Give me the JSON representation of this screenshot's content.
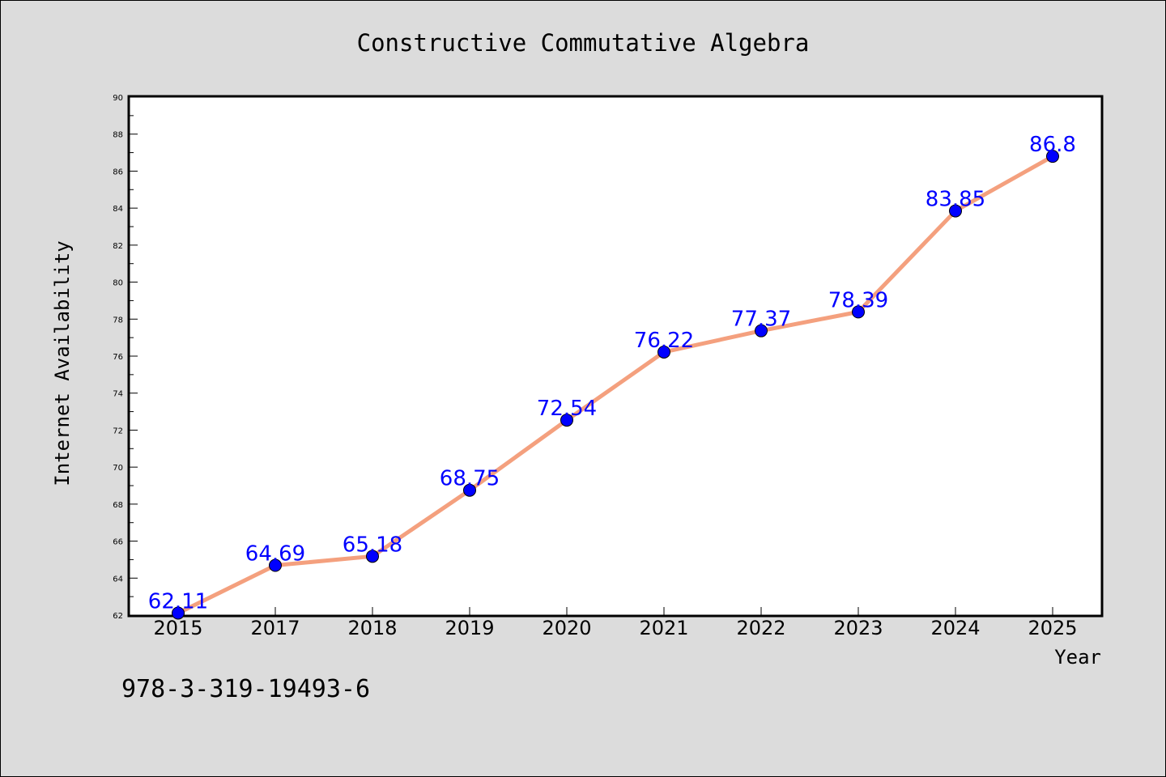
{
  "footer": {
    "isbn": "978-3-319-19493-6"
  },
  "colors": {
    "line": "#f4a07e",
    "marker": "#0000ff",
    "label": "#0000ff",
    "background": "#dcdcdc",
    "plot_bg": "#ffffff"
  },
  "chart_data": {
    "type": "line",
    "title": "Constructive Commutative Algebra",
    "xlabel": "Year",
    "ylabel": "Internet Availability",
    "categories": [
      "2015",
      "2017",
      "2018",
      "2019",
      "2020",
      "2021",
      "2022",
      "2023",
      "2024",
      "2025"
    ],
    "series": [
      {
        "values": [
          62.11,
          64.69,
          65.18,
          68.75,
          72.54,
          76.22,
          77.37,
          78.39,
          83.85,
          86.8
        ]
      }
    ],
    "data_labels": [
      "62.11",
      "64.69",
      "65.18",
      "68.75",
      "72.54",
      "76.22",
      "77.37",
      "78.39",
      "83.85",
      "86.8"
    ],
    "ylim": [
      62,
      90
    ],
    "yticks": [
      "62",
      "64",
      "66",
      "68",
      "70",
      "72",
      "74",
      "76",
      "78",
      "80",
      "82",
      "84",
      "86",
      "88",
      "90"
    ],
    "grid": false,
    "legend": "none"
  }
}
